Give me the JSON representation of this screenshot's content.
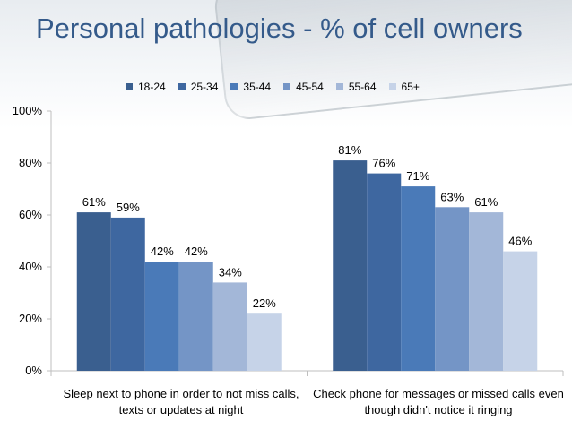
{
  "chart_data": {
    "type": "bar",
    "title": "Personal pathologies - % of cell owners",
    "categories": [
      "Sleep next to phone in order to not miss calls, texts or updates at night",
      "Check phone for messages or missed calls even though didn't notice it ringing"
    ],
    "series": [
      {
        "name": "18-24",
        "color": "#3a5f8f",
        "values": [
          61,
          81
        ],
        "labels": [
          "61%",
          "81%"
        ]
      },
      {
        "name": "25-34",
        "color": "#3e67a0",
        "values": [
          59,
          76
        ],
        "labels": [
          "59%",
          "76%"
        ]
      },
      {
        "name": "35-44",
        "color": "#4a7ab8",
        "values": [
          42,
          71
        ],
        "labels": [
          "42%",
          "71%"
        ]
      },
      {
        "name": "45-54",
        "color": "#7495c6",
        "values": [
          42,
          63
        ],
        "labels": [
          "42%",
          "63%"
        ]
      },
      {
        "name": "55-64",
        "color": "#a3b7d8",
        "values": [
          34,
          61
        ],
        "labels": [
          "34%",
          "61%"
        ]
      },
      {
        "name": "65+",
        "color": "#c6d3e8",
        "values": [
          22,
          46
        ],
        "labels": [
          "22%",
          "46%"
        ]
      }
    ],
    "ylim": [
      0,
      100
    ],
    "yticks": [
      0,
      20,
      40,
      60,
      80,
      100
    ],
    "ytick_labels": [
      "0%",
      "20%",
      "40%",
      "60%",
      "80%",
      "100%"
    ],
    "legend_position": "top",
    "grid": false
  }
}
